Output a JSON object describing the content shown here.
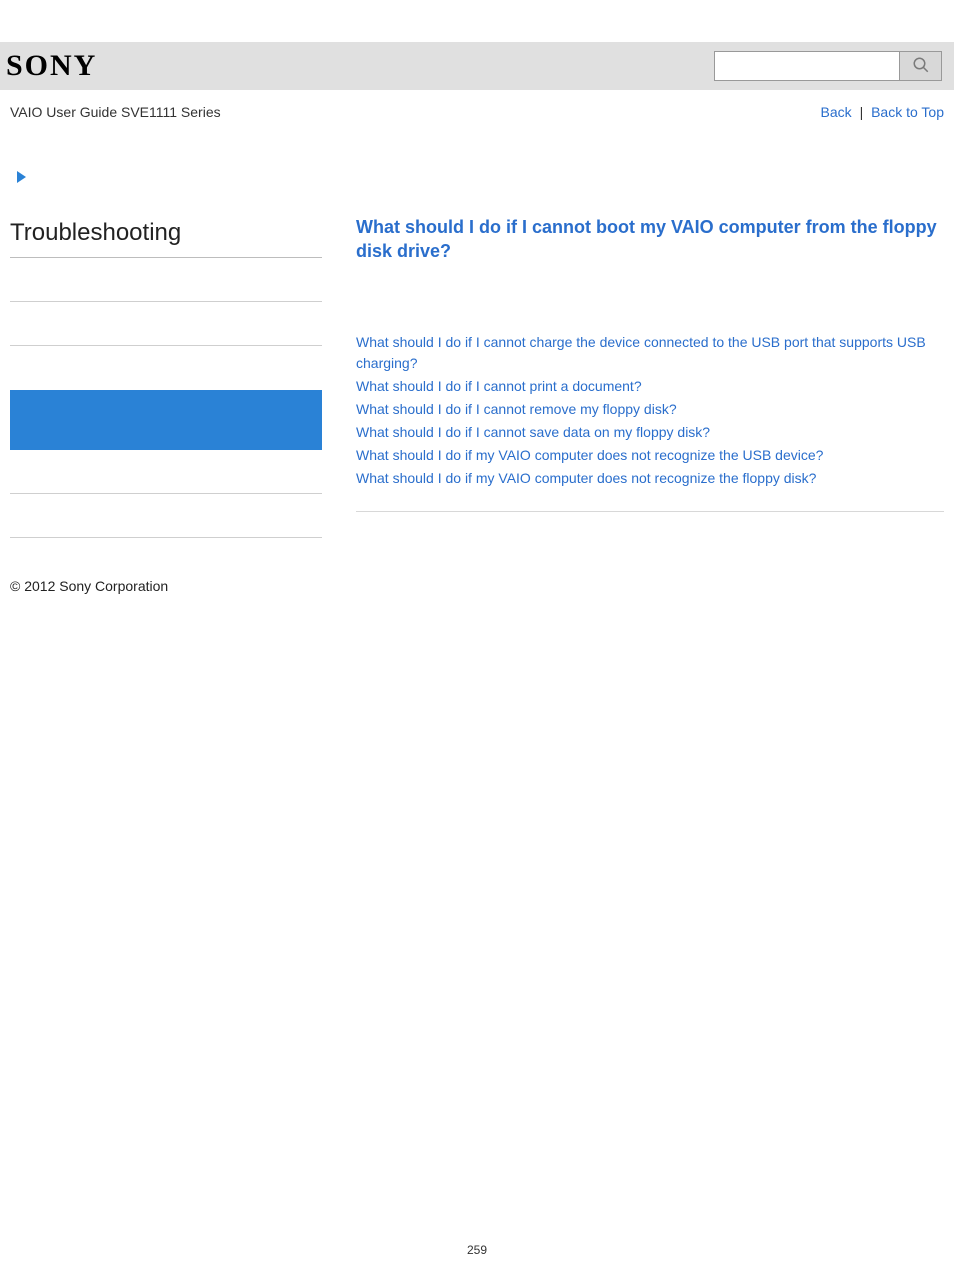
{
  "header": {
    "logo_text": "SONY",
    "search_placeholder": ""
  },
  "subheader": {
    "guide_label": "VAIO User Guide SVE1111 Series",
    "back_label": "Back",
    "back_to_top_label": "Back to Top"
  },
  "sidebar": {
    "title": "Troubleshooting"
  },
  "main": {
    "title": "What should I do if I cannot boot my VAIO computer from the floppy disk drive?",
    "links": [
      "What should I do if I cannot charge the device connected to the USB port that supports USB charging?",
      "What should I do if I cannot print a document?",
      "What should I do if I cannot remove my floppy disk?",
      "What should I do if I cannot save data on my floppy disk?",
      "What should I do if my VAIO computer does not recognize the USB device?",
      "What should I do if my VAIO computer does not recognize the floppy disk?"
    ]
  },
  "footer": {
    "copyright": "© 2012 Sony Corporation",
    "page_number": "259"
  },
  "colors": {
    "header_bg": "#e0e0e0",
    "link_color": "#2a6ecc",
    "highlight_bg": "#2a82d6",
    "border_gray": "#cfcfcf"
  }
}
